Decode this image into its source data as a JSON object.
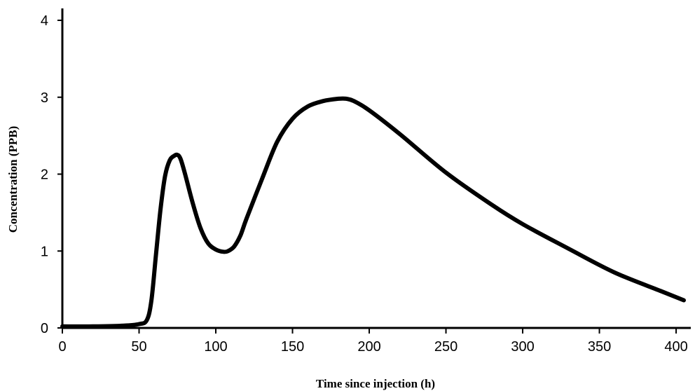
{
  "chart_data": {
    "type": "line",
    "title": "",
    "xlabel": "Time since injection (h)",
    "ylabel": "Concentration (PPB)",
    "xlim": [
      0,
      405
    ],
    "ylim": [
      0,
      4
    ],
    "xticks": [
      0,
      50,
      100,
      150,
      200,
      250,
      300,
      350,
      400
    ],
    "yticks": [
      0,
      1,
      2,
      3,
      4
    ],
    "grid": false,
    "legend": "none",
    "series": [
      {
        "color": "#000000",
        "x": [
          0,
          20,
          40,
          50,
          55,
          58,
          61,
          64,
          67,
          70,
          73,
          75,
          77,
          80,
          85,
          90,
          95,
          100,
          105,
          108,
          112,
          116,
          120,
          130,
          140,
          150,
          160,
          170,
          180,
          185,
          190,
          200,
          220,
          250,
          280,
          300,
          330,
          360,
          390,
          405
        ],
        "y": [
          0.02,
          0.02,
          0.03,
          0.05,
          0.1,
          0.35,
          0.95,
          1.55,
          1.98,
          2.18,
          2.24,
          2.25,
          2.2,
          2.0,
          1.62,
          1.3,
          1.1,
          1.02,
          0.99,
          1.0,
          1.06,
          1.2,
          1.42,
          1.93,
          2.42,
          2.72,
          2.88,
          2.95,
          2.98,
          2.98,
          2.95,
          2.83,
          2.52,
          2.02,
          1.6,
          1.35,
          1.03,
          0.72,
          0.48,
          0.36
        ]
      }
    ]
  }
}
